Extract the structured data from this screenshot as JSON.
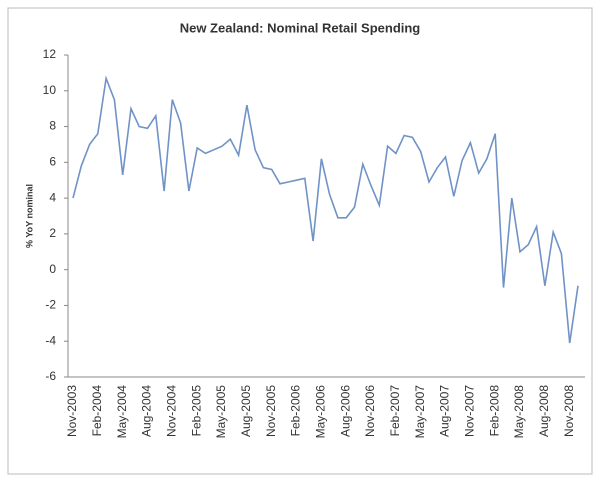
{
  "chart_data": {
    "type": "line",
    "title": "New Zealand: Nominal Retail Spending",
    "y_label": "% YoY nominal",
    "categories": [
      "Nov-2003",
      null,
      null,
      "Feb-2004",
      null,
      null,
      "May-2004",
      null,
      null,
      "Aug-2004",
      null,
      null,
      "Nov-2004",
      null,
      null,
      "Feb-2005",
      null,
      null,
      "May-2005",
      null,
      null,
      "Aug-2005",
      null,
      null,
      "Nov-2005",
      null,
      null,
      "Feb-2006",
      null,
      null,
      "May-2006",
      null,
      null,
      "Aug-2006",
      null,
      null,
      "Nov-2006",
      null,
      null,
      "Feb-2007",
      null,
      null,
      "May-2007",
      null,
      null,
      "Aug-2007",
      null,
      null,
      "Nov-2007",
      null,
      null,
      "Feb-2008",
      null,
      null,
      "May-2008",
      null,
      null,
      "Aug-2008",
      null,
      null,
      "Nov-2008",
      null
    ],
    "series": [
      {
        "name": "Nominal retail spending",
        "color": "#6f93c6",
        "values": [
          4.0,
          5.8,
          7.0,
          7.6,
          10.7,
          9.5,
          5.3,
          9.0,
          8.0,
          7.9,
          8.6,
          4.4,
          9.5,
          8.2,
          4.4,
          6.8,
          6.5,
          6.7,
          6.9,
          7.3,
          6.4,
          9.2,
          6.7,
          5.7,
          5.6,
          4.8,
          4.9,
          5.0,
          5.1,
          1.6,
          6.2,
          4.2,
          2.9,
          2.9,
          3.5,
          5.9,
          4.7,
          3.6,
          6.9,
          6.5,
          7.5,
          7.4,
          6.6,
          4.9,
          5.7,
          6.3,
          4.1,
          6.1,
          7.1,
          5.4,
          6.2,
          7.6,
          -1.0,
          4.0,
          1.0,
          1.4,
          2.4,
          -0.9,
          2.1,
          0.9,
          -4.1,
          -0.9
        ]
      }
    ],
    "ylim": [
      -6,
      12
    ],
    "yticks": [
      -6,
      -4,
      -2,
      0,
      2,
      4,
      6,
      8,
      10,
      12
    ],
    "grid": false,
    "legend": false
  }
}
